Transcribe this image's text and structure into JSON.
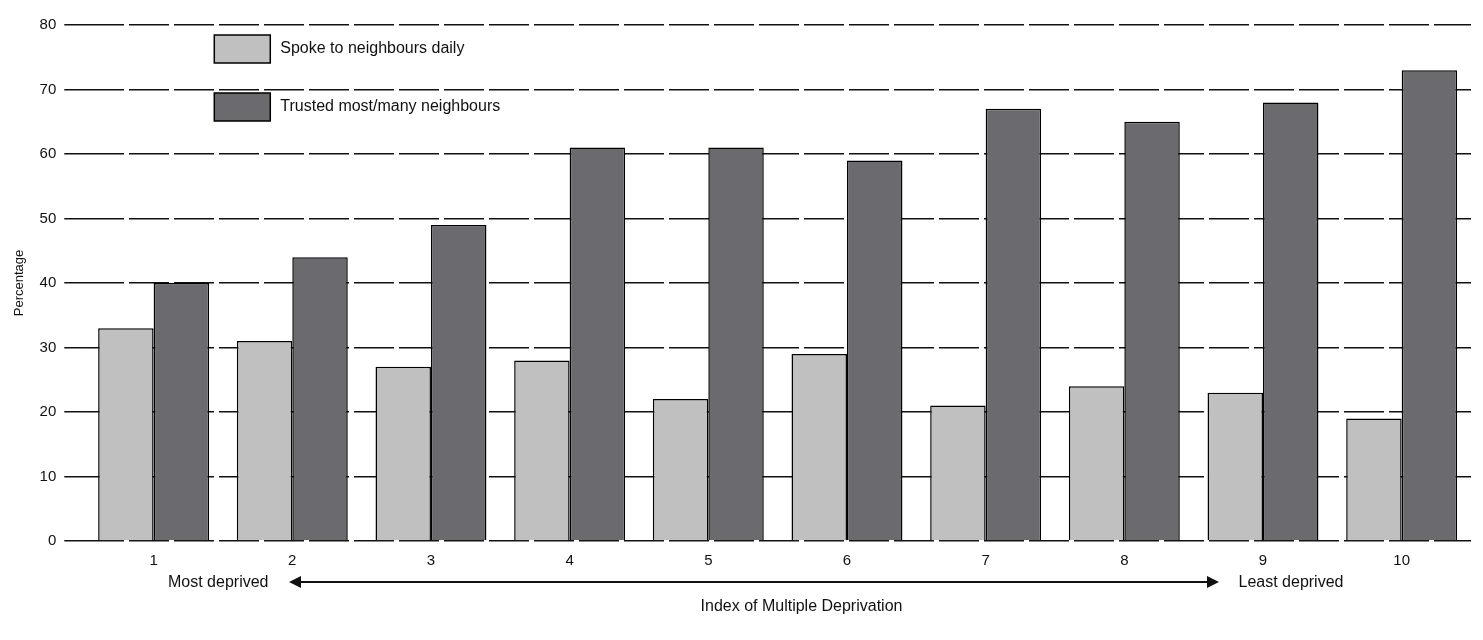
{
  "chart_data": {
    "type": "bar",
    "xlabel": "Index of Multiple Deprivation",
    "ylabel": "Percentage",
    "categories": [
      "1",
      "2",
      "3",
      "4",
      "5",
      "6",
      "7",
      "8",
      "9",
      "10"
    ],
    "series": [
      {
        "name": "Spoke to neighbours daily",
        "color": "#c0c0c0",
        "values": [
          33,
          31,
          27,
          28,
          22,
          29,
          21,
          24,
          23,
          19
        ]
      },
      {
        "name": "Trusted most/many neighbours",
        "color": "#6a6a6f",
        "values": [
          40,
          44,
          49,
          61,
          61,
          59,
          67,
          65,
          68,
          73
        ]
      }
    ],
    "ylim": [
      0,
      80
    ],
    "yticks": [
      0,
      10,
      20,
      30,
      40,
      50,
      60,
      70,
      80
    ],
    "grid": "y",
    "line_style": "dashed",
    "legend": "top left",
    "annotations": [
      "Most deprived",
      "Least deprived"
    ]
  }
}
